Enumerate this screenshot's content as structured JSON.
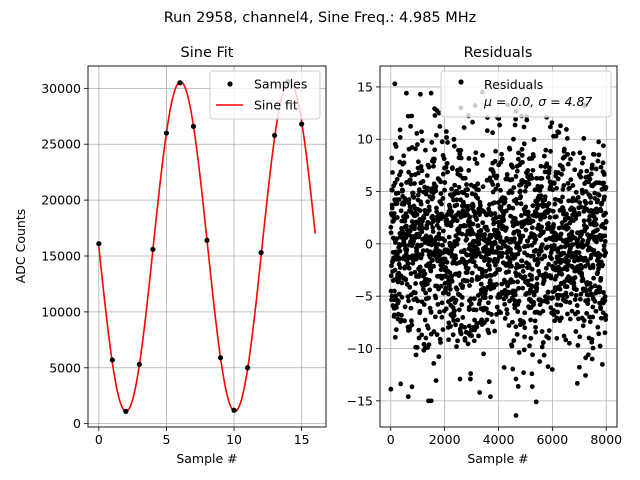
{
  "suptitle": "Run 2958, channel4, Sine Freq.: 4.985 MHz",
  "chart_data": [
    {
      "type": "scatter+line",
      "title": "Sine Fit",
      "xlabel": "Sample #",
      "ylabel": "ADC Counts",
      "xlim": [
        -0.8,
        16.8
      ],
      "ylim": [
        -300,
        32000
      ],
      "xticks": [
        0,
        5,
        10,
        15
      ],
      "yticks": [
        0,
        5000,
        10000,
        15000,
        20000,
        25000,
        30000
      ],
      "grid": true,
      "legend_position": "upper right",
      "series": [
        {
          "name": "Samples",
          "kind": "points",
          "color": "#000000",
          "x": [
            0,
            1,
            2,
            3,
            4,
            5,
            6,
            7,
            8,
            9,
            10,
            11,
            12,
            13,
            14,
            15
          ],
          "y": [
            16100,
            5700,
            1100,
            5300,
            15600,
            26000,
            30500,
            26600,
            16400,
            5900,
            1200,
            5000,
            15300,
            25800,
            30600,
            26800
          ]
        },
        {
          "name": "Sine fit",
          "kind": "line",
          "color": "#ff0000",
          "model": {
            "offset": 15850,
            "amplitude": 14750,
            "period": 8.05,
            "phase_deg": 180,
            "x_start": 0,
            "x_end": 16
          }
        }
      ]
    },
    {
      "type": "scatter",
      "title": "Residuals",
      "xlabel": "Sample #",
      "ylabel": "",
      "xlim": [
        -400,
        8400
      ],
      "ylim": [
        -17.5,
        17
      ],
      "xticks": [
        0,
        2000,
        4000,
        6000,
        8000
      ],
      "yticks": [
        -15,
        -10,
        -5,
        0,
        5,
        10,
        15
      ],
      "grid": true,
      "legend_position": "upper right",
      "legend_label": "Residuals",
      "legend_stats": "μ = 0.0, σ = 4.87",
      "series": [
        {
          "name": "Residuals",
          "color": "#000000",
          "n_points": 8000,
          "mean": 0.0,
          "sigma": 4.87,
          "outliers": [
            [
              150,
              15.3
            ],
            [
              580,
              14.4
            ],
            [
              1100,
              14.3
            ],
            [
              1500,
              14.4
            ],
            [
              3400,
              14.5
            ],
            [
              1400,
              -15.0
            ],
            [
              1500,
              -15.0
            ],
            [
              3300,
              -14.2
            ],
            [
              4650,
              -16.4
            ],
            [
              5400,
              -15.1
            ],
            [
              1800,
              12.5
            ],
            [
              7200,
              13.2
            ],
            [
              650,
              -14.6
            ],
            [
              3700,
              -14.6
            ],
            [
              2600,
              13.0
            ]
          ]
        }
      ]
    }
  ]
}
